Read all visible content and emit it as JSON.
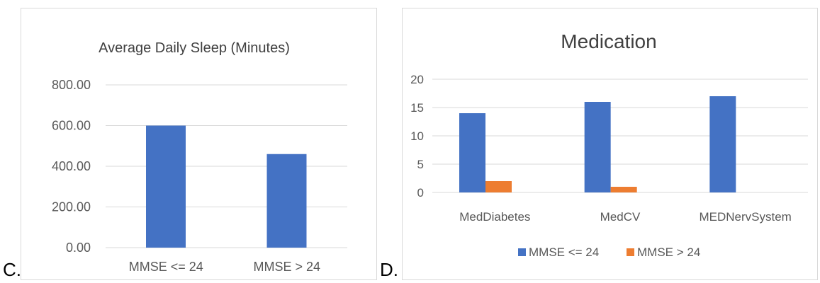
{
  "panels": [
    {
      "letter": "C.",
      "chart": {
        "type": "bar",
        "title": "Average Daily Sleep (Minutes)",
        "categories": [
          "MMSE <= 24",
          "MMSE > 24"
        ],
        "series": [
          {
            "values": [
              600,
              460
            ],
            "color": "#4472c4"
          }
        ],
        "yticks": [
          "0.00",
          "200.00",
          "400.00",
          "600.00",
          "800.00"
        ],
        "ylim": [
          0,
          800
        ],
        "grid": true,
        "legend": "none"
      }
    },
    {
      "letter": "D.",
      "chart": {
        "type": "bar",
        "title": "Medication",
        "categories": [
          "MedDiabetes",
          "MedCV",
          "MEDNervSystem"
        ],
        "series": [
          {
            "name": "MMSE <= 24",
            "values": [
              14,
              16,
              17
            ],
            "color": "#4472c4"
          },
          {
            "name": "MMSE > 24",
            "values": [
              2,
              1,
              0
            ],
            "color": "#ed7d31"
          }
        ],
        "yticks": [
          "0",
          "5",
          "10",
          "15",
          "20"
        ],
        "ylim": [
          0,
          20
        ],
        "grid": true,
        "legend": "bottom"
      }
    }
  ]
}
